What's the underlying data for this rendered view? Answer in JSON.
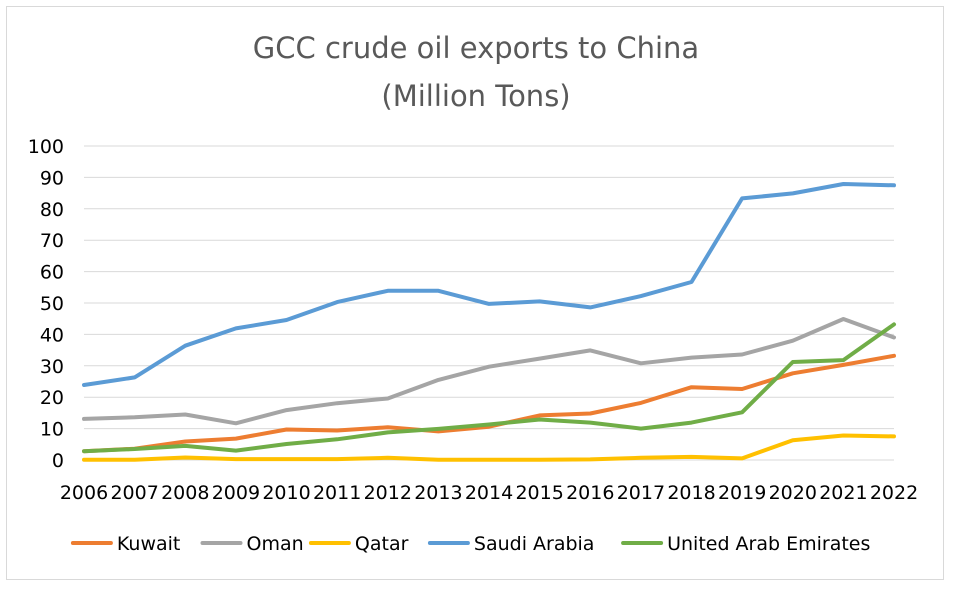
{
  "chart_data": {
    "type": "line",
    "title": "GCC crude oil exports to China",
    "subtitle": "(Million Tons)",
    "xlabel": "",
    "ylabel": "",
    "x": [
      "2006",
      "2007",
      "2008",
      "2009",
      "2010",
      "2011",
      "2012",
      "2013",
      "2014",
      "2015",
      "2016",
      "2017",
      "2018",
      "2019",
      "2020",
      "2021",
      "2022"
    ],
    "yticks": [
      "0",
      "10",
      "20",
      "30",
      "40",
      "50",
      "60",
      "70",
      "80",
      "90",
      "100"
    ],
    "ylim": [
      0,
      100
    ],
    "grid": "horizontal",
    "legend_position": "bottom",
    "series": [
      {
        "name": "Kuwait",
        "color": "#ed7d31",
        "values": [
          2.8,
          3.6,
          5.9,
          6.8,
          9.7,
          9.4,
          10.4,
          9.1,
          10.6,
          14.2,
          14.8,
          18.2,
          23.2,
          22.6,
          27.6,
          30.3,
          33.2
        ]
      },
      {
        "name": "Oman",
        "color": "#a5a5a5",
        "values": [
          13.1,
          13.6,
          14.5,
          11.7,
          15.9,
          18.1,
          19.6,
          25.5,
          29.7,
          32.3,
          34.9,
          30.8,
          32.6,
          33.6,
          38.0,
          44.9,
          39.0
        ]
      },
      {
        "name": "Qatar",
        "color": "#ffc000",
        "values": [
          0.1,
          0.1,
          0.8,
          0.3,
          0.3,
          0.3,
          0.7,
          0.1,
          0.1,
          0.1,
          0.2,
          0.7,
          1.0,
          0.5,
          6.3,
          7.8,
          7.5
        ]
      },
      {
        "name": "Saudi Arabia",
        "color": "#5b9bd5",
        "values": [
          23.9,
          26.3,
          36.4,
          41.9,
          44.6,
          50.3,
          53.9,
          53.9,
          49.7,
          50.5,
          48.6,
          52.2,
          56.7,
          83.3,
          84.9,
          87.9,
          87.5
        ]
      },
      {
        "name": "United Arab Emirates",
        "color": "#70ad47",
        "values": [
          2.8,
          3.5,
          4.5,
          3.0,
          5.1,
          6.6,
          8.8,
          9.9,
          11.3,
          12.9,
          11.9,
          10.0,
          11.9,
          15.2,
          31.2,
          31.8,
          43.2
        ]
      }
    ]
  }
}
